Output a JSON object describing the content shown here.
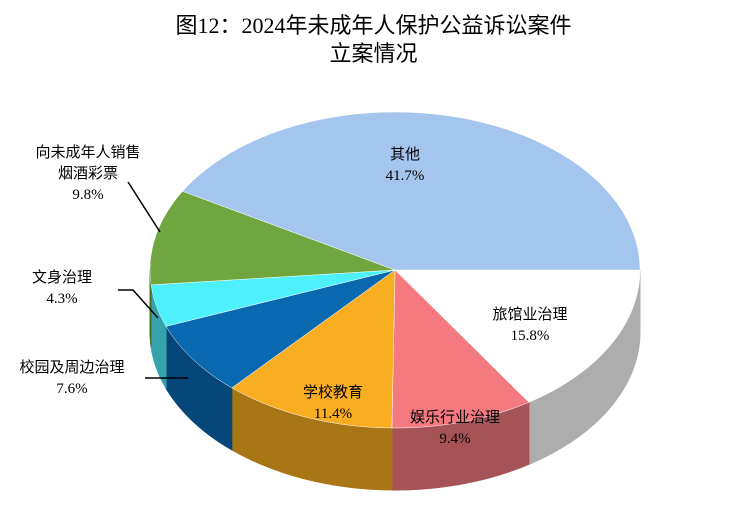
{
  "chart_data": {
    "type": "pie3d",
    "title": [
      "图12：2024年未成年人保护公益诉讼案件",
      "立案情况"
    ],
    "categories": [
      "旅馆业治理",
      "娱乐行业治理",
      "学校教育",
      "校园及周边治理",
      "文身治理",
      "向未成年人销售烟酒彩票",
      "其他"
    ],
    "values": [
      15.8,
      9.4,
      11.4,
      7.6,
      4.3,
      9.8,
      41.7
    ],
    "value_labels": [
      "15.8%",
      "9.4%",
      "11.4%",
      "7.6%",
      "4.3%",
      "9.8%",
      "41.7%"
    ],
    "colors": [
      "#ffffff",
      "#f47a80",
      "#f9ae21",
      "#0868b0",
      "#4ef0fb",
      "#6fa63f",
      "#a4c5ee"
    ]
  }
}
